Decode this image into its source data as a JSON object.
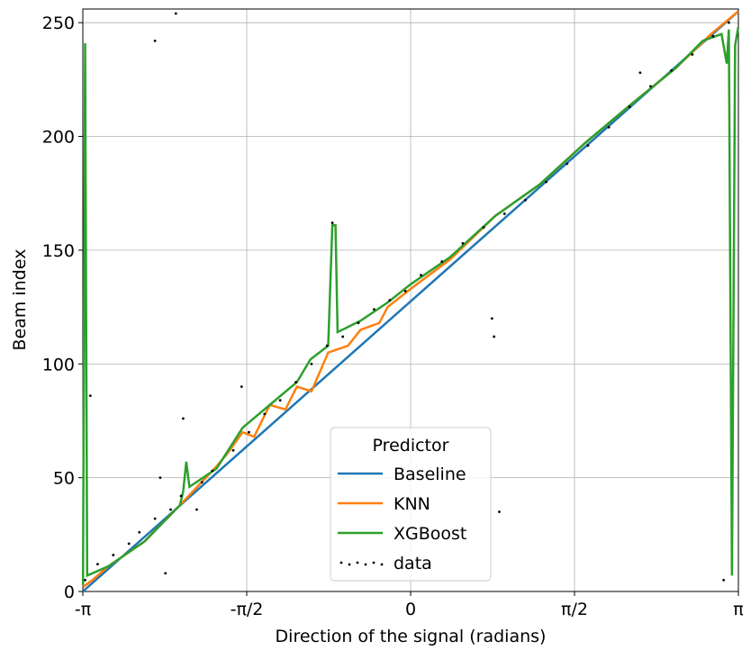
{
  "chart_data": {
    "type": "line",
    "xlabel": "Direction of the signal (radians)",
    "ylabel": "Beam index",
    "xlim": [
      -3.1416,
      3.1416
    ],
    "ylim": [
      0,
      256
    ],
    "xticks": [
      {
        "value": -3.1416,
        "label": "-π"
      },
      {
        "value": -1.5708,
        "label": "-π/2"
      },
      0,
      {
        "value": 1.5708,
        "label": "π/2"
      },
      {
        "value": 3.1416,
        "label": "π"
      }
    ],
    "yticks": [
      0,
      50,
      100,
      150,
      200,
      250
    ],
    "grid": true,
    "legend_title": "Predictor",
    "legend_position": "lower center",
    "series": [
      {
        "name": "Baseline",
        "color": "#1f77b4",
        "x": [
          -3.1416,
          3.1416
        ],
        "values": [
          0,
          255
        ]
      },
      {
        "name": "KNN",
        "color": "#ff7f0e",
        "x": [
          -3.14,
          -3.05,
          -2.9,
          -2.55,
          -2.21,
          -1.86,
          -1.75,
          -1.61,
          -1.5,
          -1.35,
          -1.2,
          -1.09,
          -0.95,
          -0.79,
          -0.6,
          -0.48,
          -0.3,
          -0.22,
          0,
          0.38,
          0.81,
          1.24,
          1.67,
          2.11,
          2.54,
          2.88,
          3.14
        ],
        "values": [
          2,
          5,
          11,
          22,
          38,
          55,
          61,
          70,
          68,
          82,
          80,
          90,
          88,
          105,
          108,
          115,
          118,
          125,
          133,
          146,
          165,
          179,
          197,
          214,
          230,
          245,
          255
        ]
      },
      {
        "name": "XGBoost",
        "color": "#2ca02c",
        "x": [
          -3.14,
          -3.12,
          -3.1,
          -2.9,
          -2.55,
          -2.21,
          -2.18,
          -2.15,
          -2.12,
          -1.86,
          -1.61,
          -1.35,
          -1.09,
          -0.96,
          -0.79,
          -0.75,
          -0.72,
          -0.7,
          -0.48,
          -0.22,
          0,
          0.38,
          0.81,
          1.24,
          1.67,
          2.11,
          2.54,
          2.8,
          2.98,
          3.03,
          3.05,
          3.08,
          3.11,
          3.14
        ],
        "values": [
          3,
          241,
          7,
          11,
          22,
          38,
          44,
          57,
          46,
          54,
          72,
          82,
          92,
          102,
          108,
          161,
          161,
          114,
          119,
          127,
          135,
          147,
          165,
          179,
          197,
          214,
          230,
          242,
          245,
          232,
          247,
          7,
          240,
          248
        ]
      },
      {
        "name": "data",
        "color": "#000000",
        "marker": "dot",
        "x": [
          -3.12,
          -3.0,
          -2.85,
          -2.7,
          -2.6,
          -2.45,
          -2.3,
          -2.2,
          -2.0,
          -1.9,
          -1.7,
          -1.55,
          -1.4,
          -1.25,
          -1.1,
          -0.95,
          -0.8,
          -0.65,
          -0.5,
          -0.35,
          -0.2,
          -0.05,
          0.1,
          0.3,
          0.5,
          0.7,
          0.9,
          1.1,
          1.3,
          1.5,
          1.7,
          1.9,
          2.1,
          2.3,
          2.5,
          2.7,
          2.9,
          3.05,
          -2.45,
          -2.25,
          -2.18,
          -3.07,
          -0.75,
          0.8,
          0.78,
          0.85,
          -2.4,
          -2.35,
          -1.62,
          -2.05,
          2.2,
          3.0
        ],
        "values": [
          5,
          12,
          16,
          21,
          26,
          32,
          36,
          42,
          48,
          53,
          62,
          70,
          78,
          84,
          92,
          100,
          108,
          112,
          118,
          124,
          128,
          132,
          139,
          145,
          153,
          160,
          166,
          172,
          180,
          188,
          196,
          204,
          213,
          222,
          229,
          236,
          244,
          250,
          242,
          254,
          76,
          86,
          162,
          112,
          120,
          35,
          50,
          8,
          90,
          36,
          228,
          5
        ]
      }
    ]
  }
}
